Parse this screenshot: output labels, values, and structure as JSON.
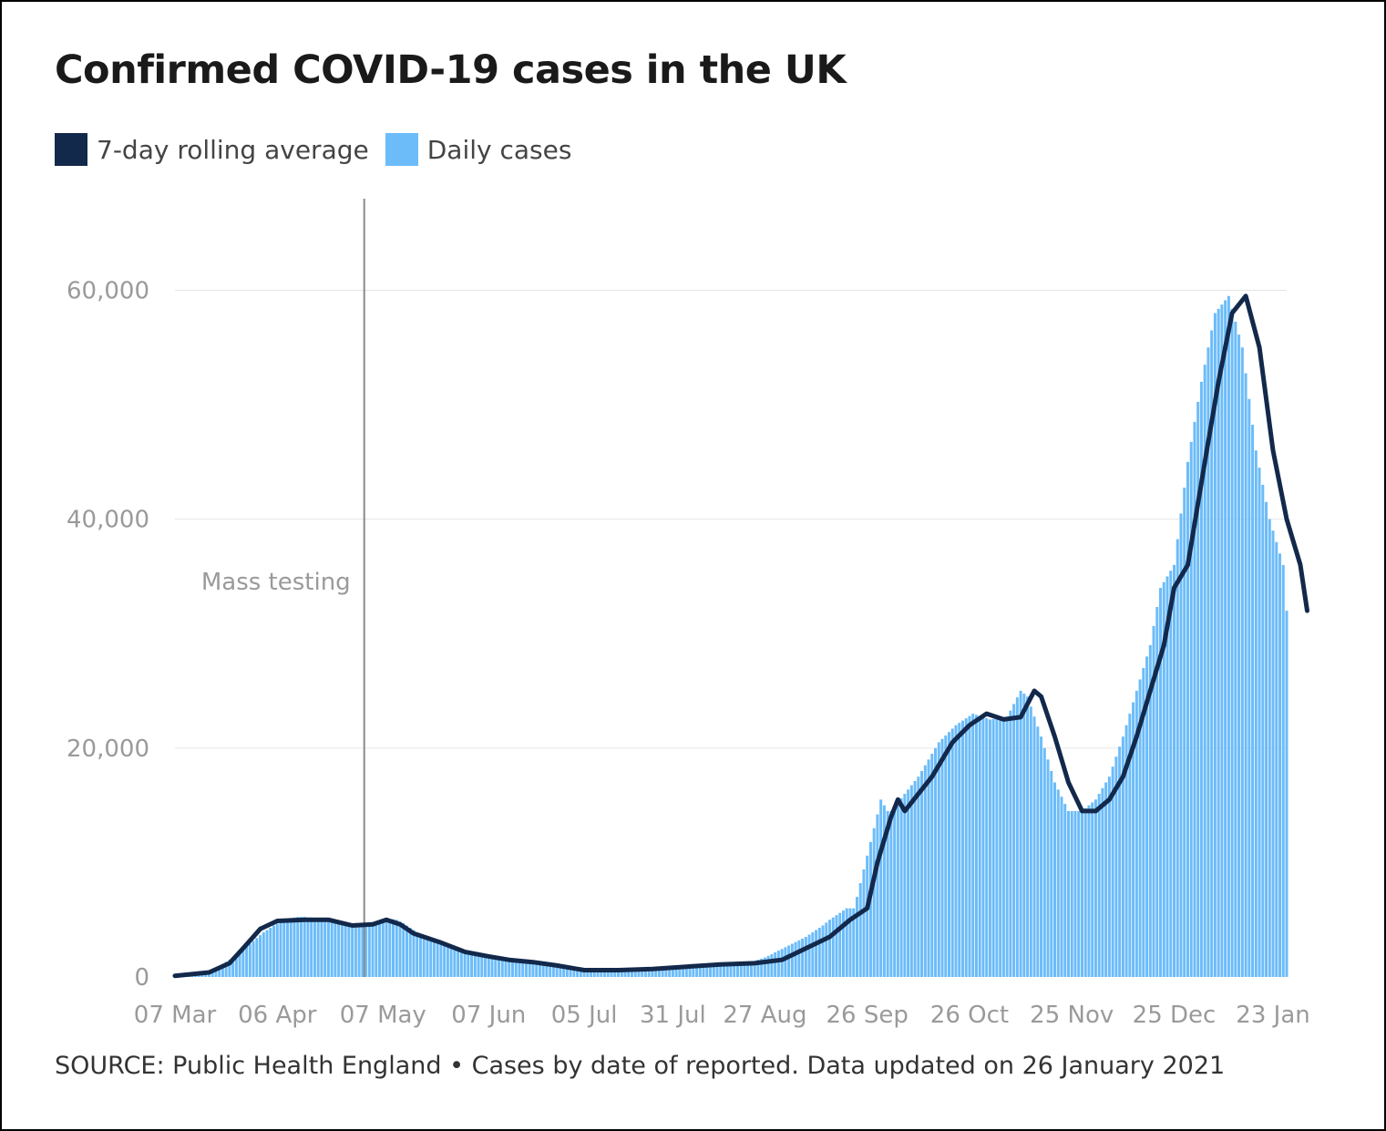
{
  "chart_data": {
    "type": "bar",
    "title": "Confirmed COVID-19 cases in the UK",
    "source": "SOURCE: Public Health England • Cases by date of reported. Data updated on 26 January 2021",
    "xlabel": "",
    "ylabel": "",
    "ylim": [
      0,
      68000
    ],
    "grid": true,
    "legend_position": "top-left",
    "y_ticks": [
      {
        "value": 0,
        "label": "0"
      },
      {
        "value": 20000,
        "label": "20,000"
      },
      {
        "value": 40000,
        "label": "40,000"
      },
      {
        "value": 60000,
        "label": "60,000"
      }
    ],
    "x_ticks": [
      {
        "day": 0,
        "label": "07 Mar"
      },
      {
        "day": 30,
        "label": "06 Apr"
      },
      {
        "day": 61,
        "label": "07 May"
      },
      {
        "day": 92,
        "label": "07 Jun"
      },
      {
        "day": 120,
        "label": "05 Jul"
      },
      {
        "day": 146,
        "label": "31 Jul"
      },
      {
        "day": 173,
        "label": "27 Aug"
      },
      {
        "day": 203,
        "label": "26 Sep"
      },
      {
        "day": 233,
        "label": "26 Oct"
      },
      {
        "day": 263,
        "label": "25 Nov"
      },
      {
        "day": 293,
        "label": "25 Dec"
      },
      {
        "day": 322,
        "label": "23 Jan"
      }
    ],
    "annotations": [
      {
        "day": 55.5,
        "label": "Mass testing"
      }
    ],
    "series": [
      {
        "name": "7-day rolling average",
        "type": "line",
        "color": "#13294b",
        "points": [
          [
            0,
            100
          ],
          [
            10,
            400
          ],
          [
            16,
            1200
          ],
          [
            20,
            2500
          ],
          [
            25,
            4200
          ],
          [
            30,
            4900
          ],
          [
            38,
            5000
          ],
          [
            45,
            5000
          ],
          [
            52,
            4500
          ],
          [
            58,
            4600
          ],
          [
            62,
            5000
          ],
          [
            66,
            4600
          ],
          [
            70,
            3800
          ],
          [
            78,
            3000
          ],
          [
            85,
            2200
          ],
          [
            92,
            1800
          ],
          [
            98,
            1500
          ],
          [
            105,
            1300
          ],
          [
            112,
            1000
          ],
          [
            120,
            600
          ],
          [
            130,
            600
          ],
          [
            140,
            700
          ],
          [
            150,
            900
          ],
          [
            160,
            1100
          ],
          [
            170,
            1200
          ],
          [
            178,
            1500
          ],
          [
            185,
            2500
          ],
          [
            192,
            3500
          ],
          [
            198,
            5000
          ],
          [
            203,
            6000
          ],
          [
            206,
            10000
          ],
          [
            210,
            14000
          ],
          [
            212,
            15500
          ],
          [
            214,
            14500
          ],
          [
            218,
            16000
          ],
          [
            222,
            17500
          ],
          [
            228,
            20500
          ],
          [
            233,
            22000
          ],
          [
            238,
            23000
          ],
          [
            243,
            22500
          ],
          [
            248,
            22700
          ],
          [
            252,
            25000
          ],
          [
            254,
            24500
          ],
          [
            258,
            21000
          ],
          [
            262,
            17000
          ],
          [
            266,
            14500
          ],
          [
            270,
            14500
          ],
          [
            274,
            15500
          ],
          [
            278,
            17500
          ],
          [
            282,
            21000
          ],
          [
            286,
            25000
          ],
          [
            290,
            29000
          ],
          [
            293,
            34000
          ],
          [
            297,
            36000
          ],
          [
            302,
            45000
          ],
          [
            306,
            52000
          ],
          [
            310,
            58000
          ],
          [
            314,
            59500
          ],
          [
            318,
            55000
          ],
          [
            322,
            46000
          ],
          [
            326,
            40000
          ],
          [
            330,
            36000
          ],
          [
            332,
            32000
          ]
        ]
      },
      {
        "name": "Daily cases",
        "type": "bar",
        "color": "#6cbcf9",
        "values": [
          50,
          80,
          100,
          130,
          160,
          200,
          250,
          310,
          380,
          460,
          560,
          700,
          830,
          980,
          1150,
          1330,
          1520,
          1720,
          1940,
          2170,
          2400,
          2650,
          2900,
          3150,
          3400,
          3650,
          3900,
          4100,
          4300,
          4500,
          4650,
          4800,
          4950,
          5050,
          5150,
          5200,
          5250,
          5250,
          5250,
          5200,
          5200,
          5150,
          5100,
          5050,
          5000,
          4950,
          4900,
          4850,
          4800,
          4750,
          4700,
          4650,
          4600,
          4600,
          4600,
          4600,
          4650,
          4700,
          4750,
          4800,
          4850,
          4950,
          5000,
          5050,
          5050,
          5000,
          4850,
          4700,
          4500,
          4300,
          4100,
          3900,
          3750,
          3600,
          3450,
          3300,
          3150,
          3050,
          2950,
          2850,
          2750,
          2650,
          2550,
          2450,
          2350,
          2250,
          2150,
          2050,
          1950,
          1900,
          1850,
          1800,
          1750,
          1700,
          1650,
          1600,
          1550,
          1500,
          1450,
          1400,
          1380,
          1360,
          1340,
          1320,
          1300,
          1280,
          1260,
          1240,
          1220,
          1180,
          1140,
          1100,
          1050,
          1000,
          950,
          900,
          850,
          800,
          750,
          700,
          650,
          600,
          600,
          600,
          600,
          600,
          610,
          620,
          630,
          640,
          650,
          660,
          670,
          680,
          690,
          700,
          720,
          740,
          760,
          780,
          800,
          820,
          840,
          860,
          880,
          900,
          920,
          940,
          960,
          980,
          1000,
          1020,
          1040,
          1060,
          1080,
          1100,
          1110,
          1120,
          1130,
          1140,
          1150,
          1160,
          1170,
          1180,
          1190,
          1200,
          1240,
          1280,
          1320,
          1360,
          1400,
          1500,
          1600,
          1700,
          1850,
          2000,
          2150,
          2300,
          2450,
          2600,
          2750,
          2900,
          3050,
          3200,
          3350,
          3500,
          3700,
          3900,
          4100,
          4300,
          4500,
          4750,
          5000,
          5200,
          5400,
          5600,
          5800,
          6000,
          6000,
          6000,
          7000,
          8200,
          9400,
          10600,
          11800,
          13000,
          14200,
          15500,
          15000,
          14500,
          14500,
          14875,
          15250,
          15625,
          16000,
          16375,
          16750,
          17125,
          17500,
          18000,
          18500,
          19000,
          19500,
          20000,
          20500,
          20800,
          21100,
          21400,
          21700,
          22000,
          22200,
          22400,
          22600,
          22800,
          23000,
          22900,
          22800,
          22700,
          22600,
          22500,
          22540,
          22580,
          22620,
          22660,
          22700,
          23275,
          23850,
          24425,
          25000,
          24750,
          24500,
          23625,
          22750,
          21875,
          21000,
          20000,
          19000,
          18000,
          17000,
          16375,
          15750,
          15125,
          14500,
          14500,
          14500,
          14500,
          14500,
          14750,
          15000,
          15250,
          15500,
          16000,
          16500,
          17000,
          17500,
          18375,
          19250,
          20125,
          21000,
          22000,
          23000,
          24000,
          25000,
          26000,
          27000,
          28000,
          29000,
          30667,
          32333,
          34000,
          34500,
          35000,
          35500,
          36000,
          38250,
          40500,
          42750,
          45000,
          46750,
          48500,
          50250,
          52000,
          53500,
          55000,
          56500,
          58000,
          58375,
          58750,
          59125,
          59500,
          58375,
          57250,
          56125,
          55000,
          52750,
          50500,
          48250,
          46000,
          44500,
          43000,
          41500,
          40000,
          39000,
          38000,
          37000,
          36000,
          32000
        ]
      }
    ]
  }
}
